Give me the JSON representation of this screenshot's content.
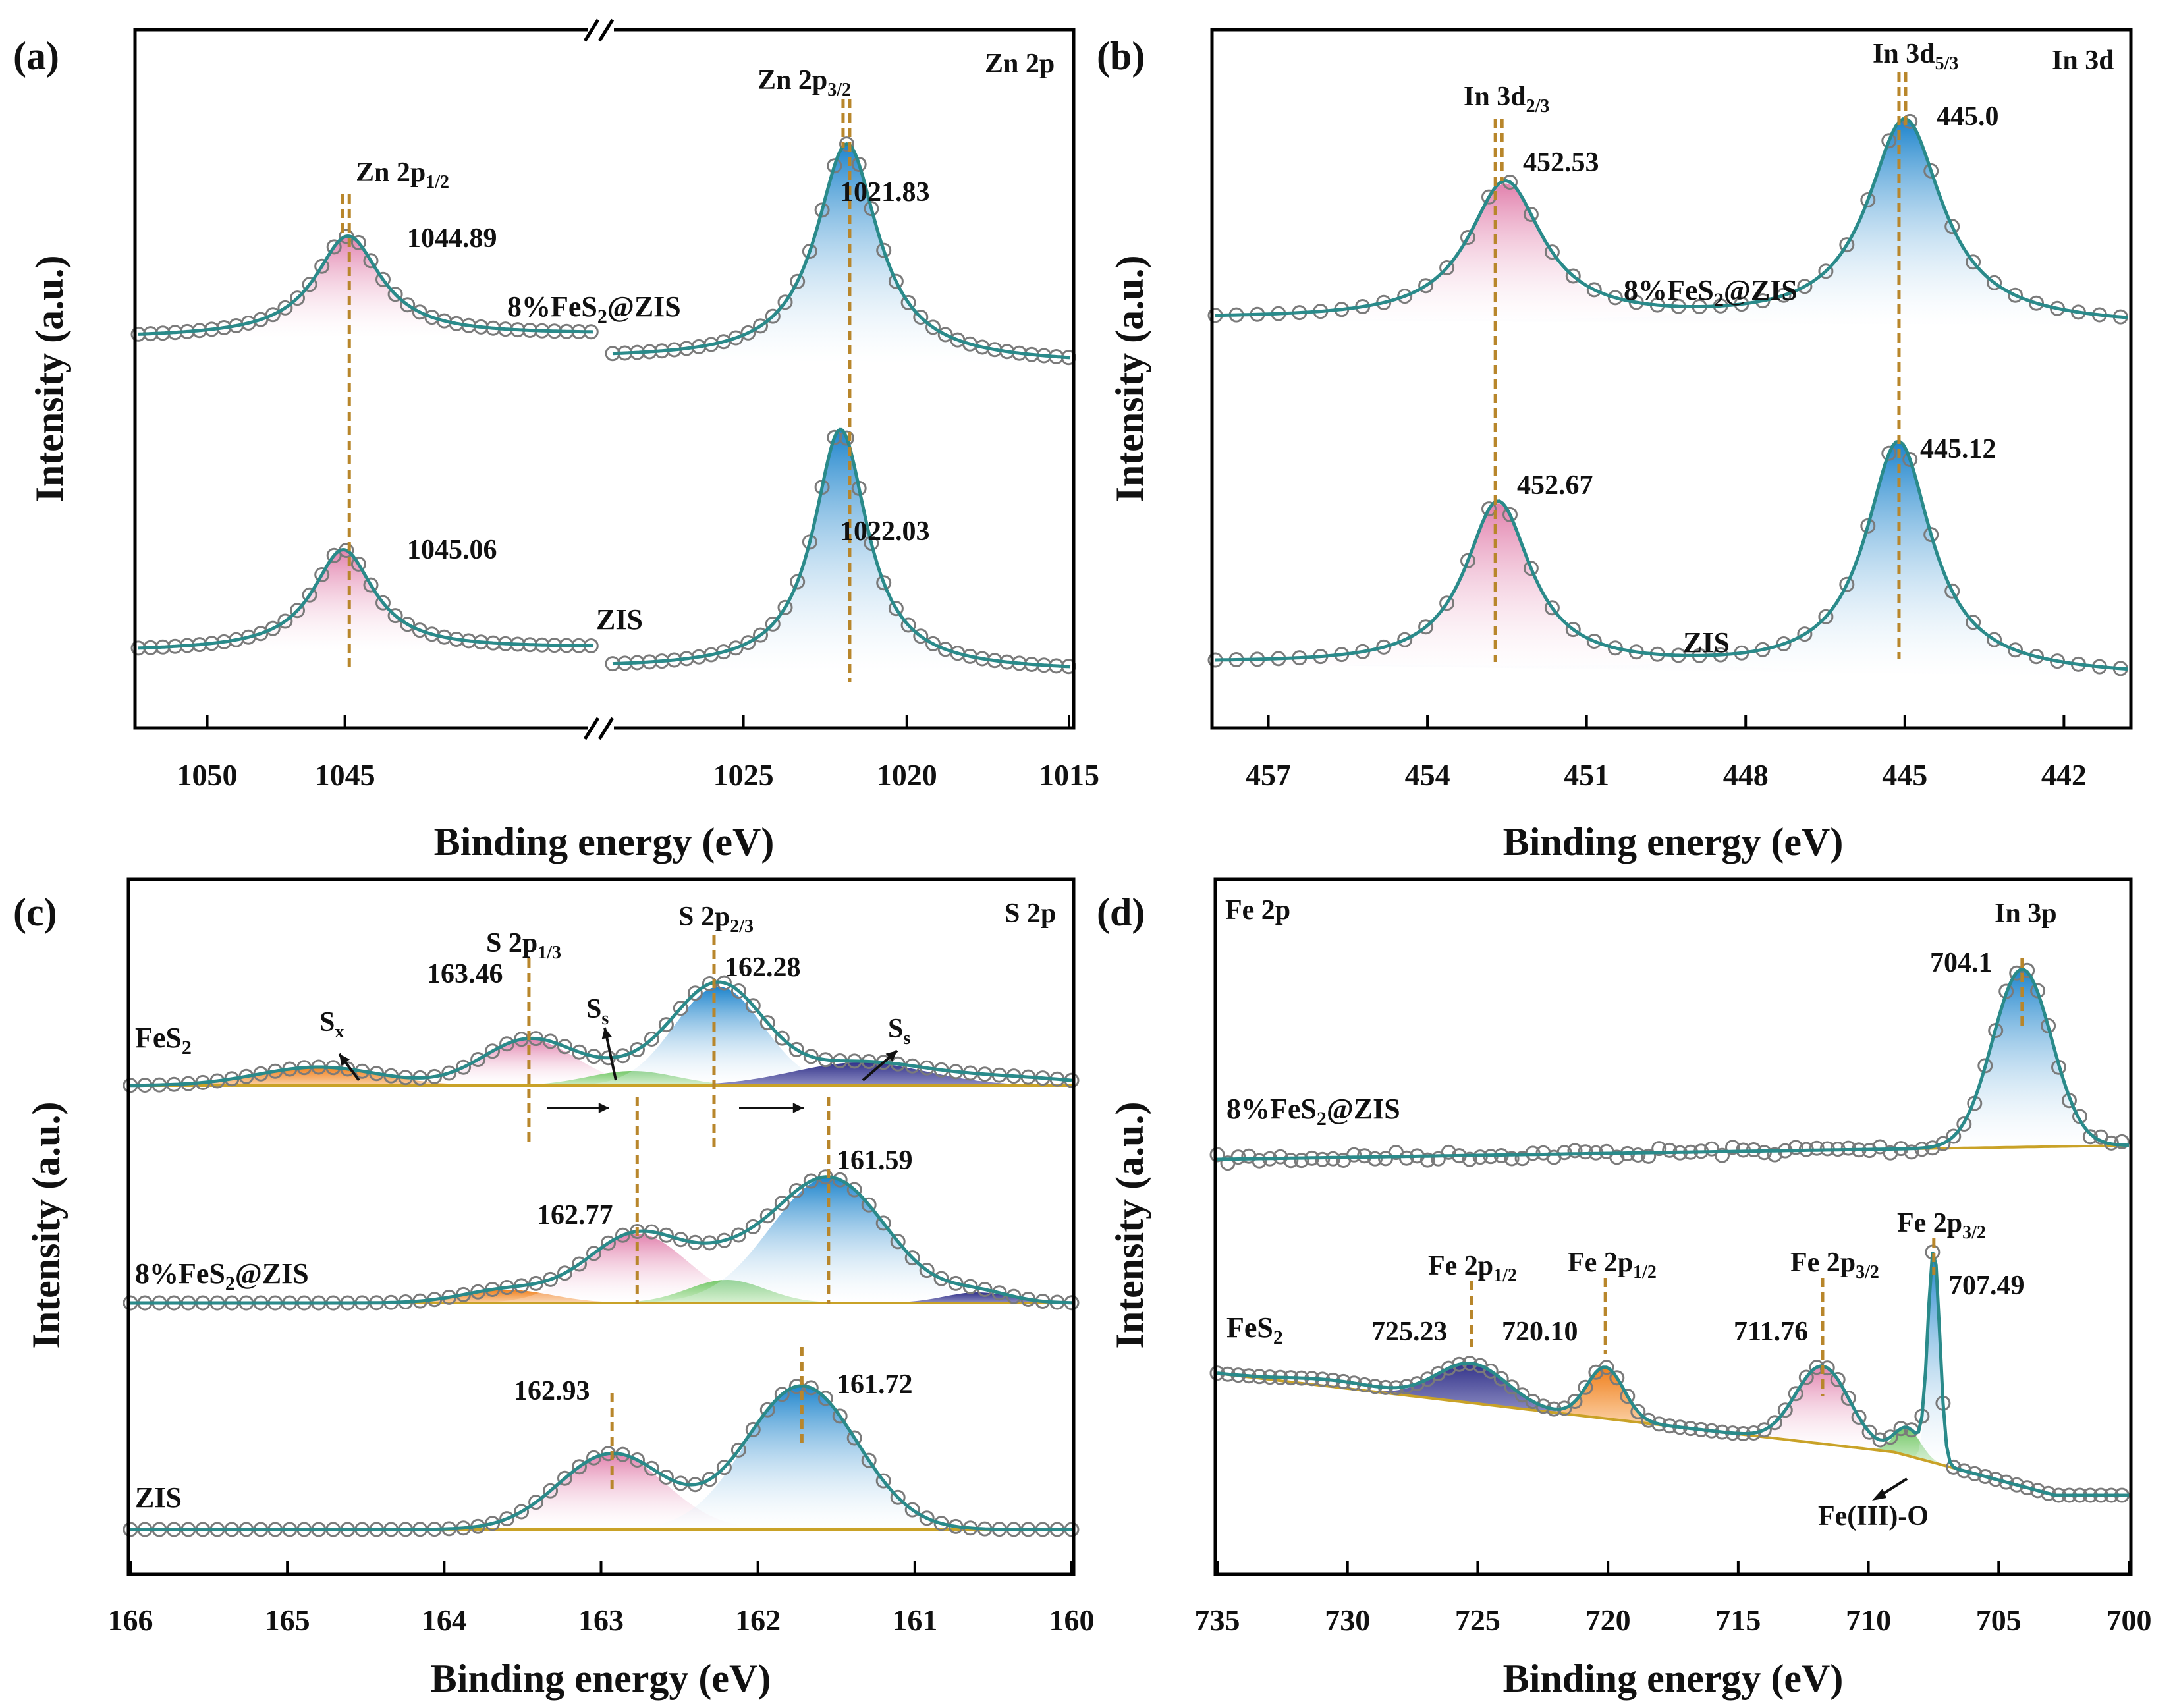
{
  "figure": "XPS high-resolution spectra",
  "colors": {
    "fit_line": "#2a8a8a",
    "marker": "#7a7a7a",
    "guide": "#b8862b",
    "background": "#c9a227",
    "fill_pink": "#e89bbd",
    "fill_blue": "#2d8fd0",
    "fill_orange": "#f0882a",
    "fill_green": "#8fcf7a",
    "fill_navy": "#3a3a8c"
  },
  "chart_data": [
    {
      "panel": "(a)",
      "type": "line",
      "title": "Zn 2p",
      "xlabel": "Binding energy (eV)",
      "ylabel": "Intensity (a.u.)",
      "x_axis_broken": true,
      "xlim_left": [
        1052.5,
        1036.0
      ],
      "xlim_right": [
        1029.0,
        1015.0
      ],
      "xticks": [
        "1050",
        "1045",
        "1025",
        "1020",
        "1015"
      ],
      "peak_labels": [
        "Zn 2p1/2",
        "Zn 2p3/2"
      ],
      "series": [
        {
          "name": "8%FeS2@ZIS",
          "peaks": [
            {
              "center": 1044.89,
              "label": "1044.89",
              "fill": "pink"
            },
            {
              "center": 1021.83,
              "label": "1021.83",
              "fill": "blue"
            }
          ]
        },
        {
          "name": "ZIS",
          "peaks": [
            {
              "center": 1045.06,
              "label": "1045.06",
              "fill": "pink"
            },
            {
              "center": 1022.03,
              "label": "1022.03",
              "fill": "blue"
            }
          ]
        }
      ]
    },
    {
      "panel": "(b)",
      "type": "line",
      "title": "In 3d",
      "xlabel": "Binding energy (eV)",
      "ylabel": "Intensity (a.u.)",
      "xlim": [
        458.0,
        440.8
      ],
      "xticks": [
        "457",
        "454",
        "451",
        "448",
        "445",
        "442"
      ],
      "peak_labels": [
        "In 3d2/3",
        "In 3d5/3"
      ],
      "series": [
        {
          "name": "8%FeS2@ZIS",
          "peaks": [
            {
              "center": 452.53,
              "label": "452.53",
              "fill": "pink"
            },
            {
              "center": 445.0,
              "label": "445.0",
              "fill": "blue"
            }
          ]
        },
        {
          "name": "ZIS",
          "peaks": [
            {
              "center": 452.67,
              "label": "452.67",
              "fill": "pink"
            },
            {
              "center": 445.12,
              "label": "445.12",
              "fill": "blue"
            }
          ]
        }
      ]
    },
    {
      "panel": "(c)",
      "type": "line",
      "title": "S 2p",
      "xlabel": "Binding energy (eV)",
      "ylabel": "Intensity (a.u.)",
      "xlim": [
        166,
        160
      ],
      "xticks": [
        "166",
        "165",
        "164",
        "163",
        "162",
        "161",
        "160"
      ],
      "peak_labels": [
        "S 2p1/3",
        "S 2p2/3"
      ],
      "component_labels": [
        "Sx",
        "Ss",
        "Ss"
      ],
      "series": [
        {
          "name": "FeS2",
          "peaks": [
            {
              "center": 163.46,
              "label": "163.46",
              "fill": "pink"
            },
            {
              "center": 162.28,
              "label": "162.28",
              "fill": "blue"
            }
          ]
        },
        {
          "name": "8%FeS2@ZIS",
          "peaks": [
            {
              "center": 162.77,
              "label": "162.77",
              "fill": "pink"
            },
            {
              "center": 161.59,
              "label": "161.59",
              "fill": "blue"
            }
          ]
        },
        {
          "name": "ZIS",
          "peaks": [
            {
              "center": 162.93,
              "label": "162.93",
              "fill": "pink"
            },
            {
              "center": 161.72,
              "label": "161.72",
              "fill": "blue"
            }
          ]
        }
      ]
    },
    {
      "panel": "(d)",
      "type": "line",
      "title": "Fe 2p",
      "xlabel": "Binding energy (eV)",
      "ylabel": "Intensity (a.u.)",
      "xlim": [
        735,
        700
      ],
      "xticks": [
        "735",
        "730",
        "725",
        "720",
        "715",
        "710",
        "705",
        "700"
      ],
      "series": [
        {
          "name": "8%FeS2@ZIS",
          "peaks": [
            {
              "center": 704.1,
              "label": "704.1",
              "name": "In 3p",
              "fill": "blue"
            }
          ]
        },
        {
          "name": "FeS2",
          "peaks": [
            {
              "center": 725.23,
              "label": "725.23",
              "name": "Fe 2p1/2",
              "fill": "navy"
            },
            {
              "center": 720.1,
              "label": "720.10",
              "name": "Fe 2p1/2",
              "fill": "orange"
            },
            {
              "center": 711.76,
              "label": "711.76",
              "name": "Fe 2p3/2",
              "fill": "pink"
            },
            {
              "center": 707.49,
              "label": "707.49",
              "name": "Fe 2p3/2",
              "fill": "blue"
            }
          ]
        }
      ],
      "annotation": "Fe(III)-O"
    }
  ],
  "text": {
    "a": {
      "panel": "(a)",
      "title": "Zn 2p",
      "p1": "Zn 2p",
      "p1s": "1/2",
      "p2": "Zn 2p",
      "p2s": "3/2",
      "s1a": "8%FeS",
      "s1b": "2",
      "s1c": "@ZIS",
      "s2": "ZIS",
      "v1": "1044.89",
      "v2": "1021.83",
      "v3": "1045.06",
      "v4": "1022.03"
    },
    "b": {
      "panel": "(b)",
      "title": "In 3d",
      "p1": "In 3d",
      "p1s": "2/3",
      "p2": "In 3d",
      "p2s": "5/3",
      "s1a": "8%FeS",
      "s1b": "2",
      "s1c": "@ZIS",
      "s2": "ZIS",
      "v1": "452.53",
      "v2": "445.0",
      "v3": "452.67",
      "v4": "445.12"
    },
    "c": {
      "panel": "(c)",
      "title": "S 2p",
      "p1": "S 2p",
      "p1s": "1/3",
      "p2": "S 2p",
      "p2s": "2/3",
      "sA": "FeS",
      "sAs": "2",
      "sB": "8%FeS",
      "sBs": "2",
      "sBe": "@ZIS",
      "sC": "ZIS",
      "sx": "S",
      "sxs": "x",
      "ss": "S",
      "sss": "s",
      "v1": "163.46",
      "v2": "162.28",
      "v3": "162.77",
      "v4": "161.59",
      "v5": "162.93",
      "v6": "161.72"
    },
    "d": {
      "panel": "(d)",
      "title": "Fe 2p",
      "in3p": "In 3p",
      "s1a": "8%FeS",
      "s1b": "2",
      "s1c": "@ZIS",
      "s2a": "FeS",
      "s2b": "2",
      "fe": "Fe 2p",
      "s12": "1/2",
      "s32": "3/2",
      "v0": "704.1",
      "v1": "725.23",
      "v2": "720.10",
      "v3": "711.76",
      "v4": "707.49",
      "feo": "Fe(III)-O"
    },
    "xlabel": "Binding energy (eV)",
    "ylabel": "Intensity (a.u.)"
  }
}
